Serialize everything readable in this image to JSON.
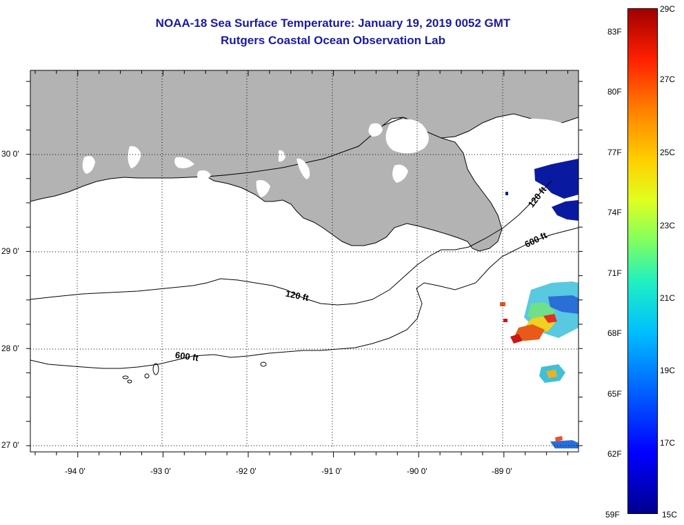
{
  "title": {
    "line1": "NOAA-18 Sea Surface Temperature:  January 19, 2019 0052 GMT",
    "line2": "Rutgers Coastal Ocean Observation Lab"
  },
  "map": {
    "lon_labels": [
      "-94 0'",
      "-93 0'",
      "-92 0'",
      "-91 0'",
      "-90 0'",
      "-89 0'"
    ],
    "lat_labels": [
      "30 0'",
      "29 0'",
      "28 0'",
      "27 0'"
    ],
    "contour_labels": {
      "c120_mid": "120 ft",
      "c120_east": "120 ft",
      "c600_mid": "600 ft",
      "c600_east": "600 ft"
    },
    "colors": {
      "land": "#b3b3b3",
      "title": "#1a1aa0"
    }
  },
  "colorbar": {
    "fahrenheit": [
      "83F",
      "80F",
      "77F",
      "74F",
      "71F",
      "68F",
      "65F",
      "62F",
      "59F"
    ],
    "celsius": [
      "29C",
      "27C",
      "25C",
      "23C",
      "21C",
      "19C",
      "17C",
      "15C"
    ]
  }
}
